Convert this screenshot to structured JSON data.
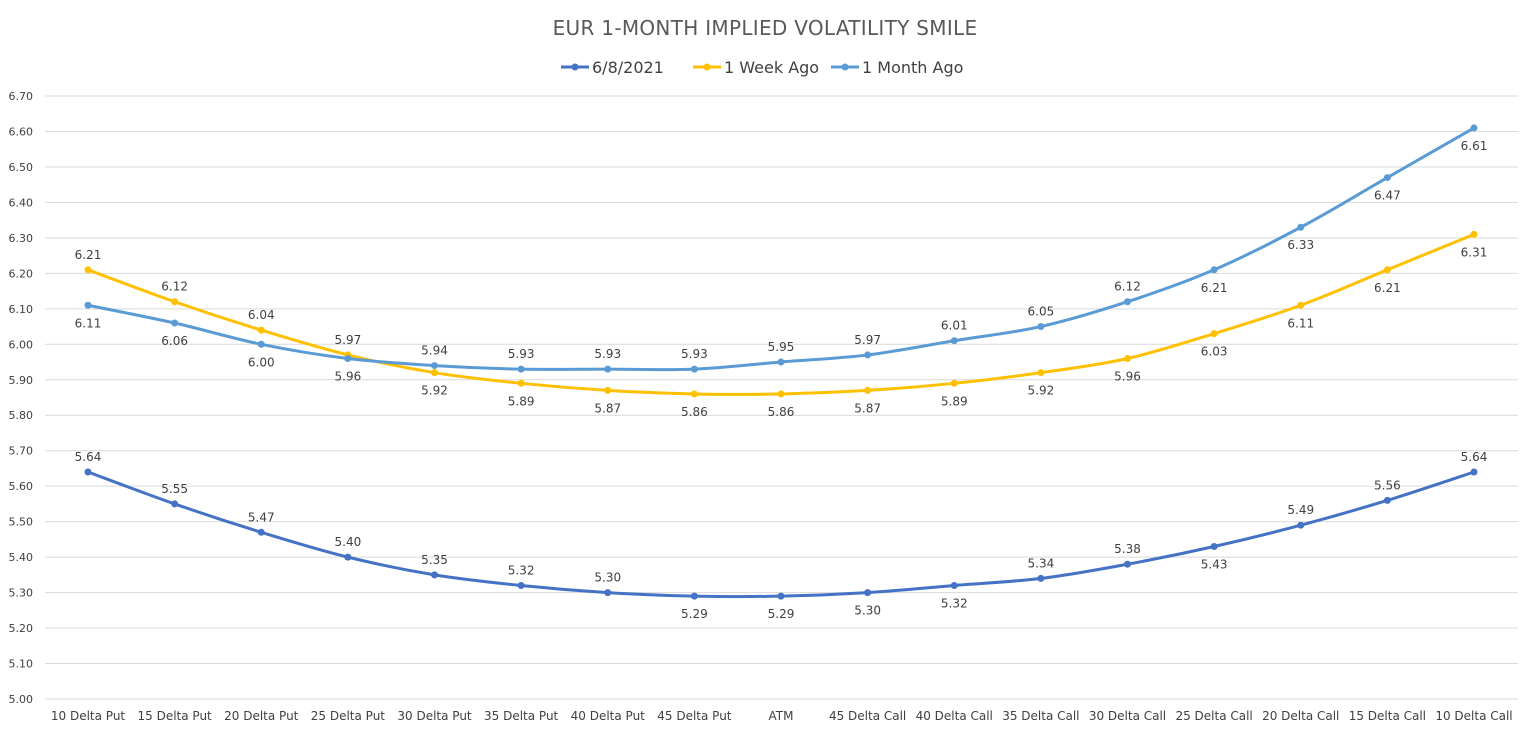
{
  "chart_data": {
    "type": "line",
    "title": "EUR 1-MONTH IMPLIED VOLATILITY SMILE",
    "xlabel": "",
    "ylabel": "",
    "ylim": [
      5.0,
      6.7
    ],
    "ytick_step": 0.1,
    "ytick_decimals": 2,
    "grid": true,
    "legend_position": "top-center",
    "categories": [
      "10 Delta Put",
      "15 Delta Put",
      "20 Delta Put",
      "25 Delta Put",
      "30 Delta Put",
      "35 Delta Put",
      "40 Delta Put",
      "45 Delta Put",
      "ATM",
      "45 Delta Call",
      "40 Delta Call",
      "35 Delta Call",
      "30 Delta Call",
      "25 Delta Call",
      "20 Delta Call",
      "15 Delta Call",
      "10 Delta Call"
    ],
    "series": [
      {
        "name": "6/8/2021",
        "color": "#4472c4",
        "values": [
          5.64,
          5.55,
          5.47,
          5.4,
          5.35,
          5.32,
          5.3,
          5.29,
          5.29,
          5.3,
          5.32,
          5.34,
          5.38,
          5.43,
          5.49,
          5.56,
          5.64
        ],
        "label_pos": [
          "above",
          "above",
          "above",
          "above",
          "above",
          "above",
          "above",
          "below",
          "below",
          "below",
          "below",
          "above",
          "above",
          "below",
          "above",
          "above",
          "above"
        ]
      },
      {
        "name": "1 Week Ago",
        "color": "#ffc000",
        "values": [
          6.21,
          6.12,
          6.04,
          5.97,
          5.92,
          5.89,
          5.87,
          5.86,
          5.86,
          5.87,
          5.89,
          5.92,
          5.96,
          6.03,
          6.11,
          6.21,
          6.31
        ],
        "label_pos": [
          "above",
          "above",
          "above",
          "above",
          "below",
          "below",
          "below",
          "below",
          "below",
          "below",
          "below",
          "below",
          "below",
          "below",
          "below",
          "below",
          "below"
        ]
      },
      {
        "name": "1 Month Ago",
        "color": "#5b9bd5",
        "values": [
          6.11,
          6.06,
          6.0,
          5.96,
          5.94,
          5.93,
          5.93,
          5.93,
          5.95,
          5.97,
          6.01,
          6.05,
          6.12,
          6.21,
          6.33,
          6.47,
          6.61
        ],
        "label_pos": [
          "below",
          "below",
          "below",
          "below",
          "above",
          "above",
          "above",
          "above",
          "above",
          "above",
          "above",
          "above",
          "above",
          "below",
          "below",
          "below",
          "below"
        ]
      }
    ]
  }
}
